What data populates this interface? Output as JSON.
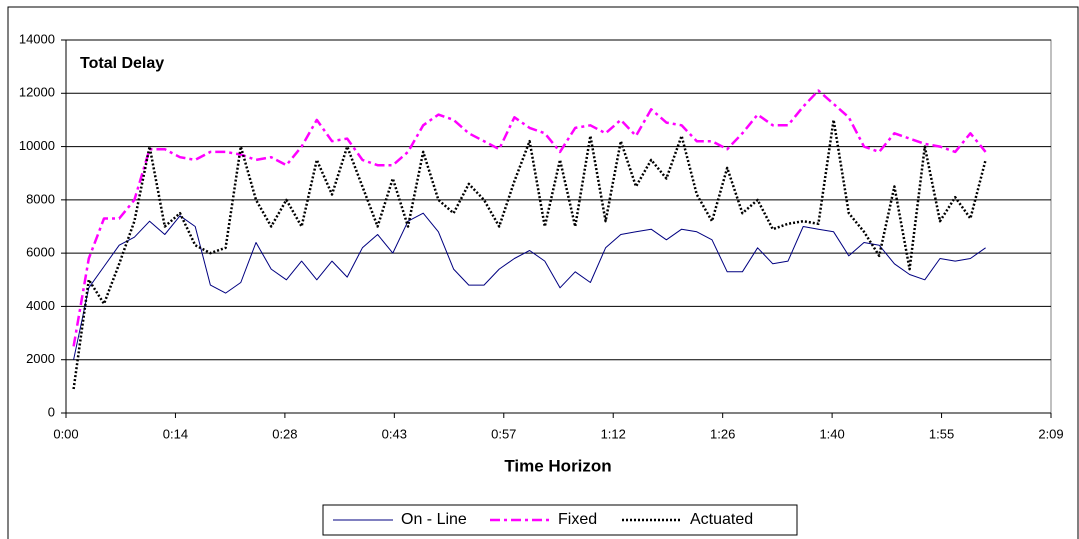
{
  "chart_data": {
    "type": "line",
    "title": "Total Delay",
    "x_label": "Time Horizon",
    "x": [
      1,
      3,
      5,
      7,
      9,
      11,
      13,
      15,
      17,
      19,
      21,
      23,
      25,
      27,
      29,
      31,
      33,
      35,
      37,
      39,
      41,
      43,
      45,
      47,
      49,
      51,
      53,
      55,
      57,
      59,
      61,
      63,
      65,
      67,
      69,
      71,
      73,
      75,
      77,
      79,
      81,
      83,
      85,
      87,
      89,
      91,
      93,
      95,
      97,
      99,
      101,
      103,
      105,
      107,
      109,
      111,
      113,
      115,
      117,
      119,
      121
    ],
    "series": [
      {
        "name": "On - Line",
        "color": "#000080",
        "line_style": "solid",
        "values": [
          2000,
          4700,
          5500,
          6300,
          6600,
          7200,
          6700,
          7400,
          7000,
          4800,
          4500,
          4900,
          6400,
          5400,
          5000,
          5700,
          5000,
          5700,
          5100,
          6200,
          6700,
          6000,
          7200,
          7500,
          6800,
          5400,
          4800,
          4800,
          5400,
          5800,
          6100,
          5700,
          4700,
          5300,
          4900,
          6200,
          6700,
          6800,
          6900,
          6500,
          6900,
          6800,
          6500,
          5300,
          5300,
          6200,
          5600,
          5700,
          7000,
          6900,
          6800,
          5900,
          6400,
          6300,
          5600,
          5200,
          5000,
          5800,
          5700,
          5800,
          6200
        ]
      },
      {
        "name": "Fixed",
        "color": "#ff00ff",
        "line_style": "dash-dot",
        "values": [
          2500,
          5800,
          7300,
          7300,
          8000,
          9900,
          9900,
          9600,
          9500,
          9800,
          9800,
          9700,
          9500,
          9600,
          9300,
          10000,
          11000,
          10200,
          10300,
          9500,
          9300,
          9300,
          9800,
          10800,
          11200,
          11000,
          10500,
          10200,
          9900,
          11100,
          10700,
          10500,
          9800,
          10700,
          10800,
          10500,
          11000,
          10400,
          11400,
          10900,
          10800,
          10200,
          10200,
          9900,
          10500,
          11200,
          10800,
          10800,
          11500,
          12100,
          11600,
          11100,
          10000,
          9800,
          10500,
          10300,
          10100,
          10000,
          9800,
          10500,
          9800
        ]
      },
      {
        "name": "Actuated",
        "color": "#000000",
        "line_style": "dot",
        "values": [
          900,
          5000,
          4100,
          5600,
          7200,
          10000,
          7000,
          7500,
          6300,
          6000,
          6200,
          10000,
          8000,
          7000,
          8000,
          7000,
          9500,
          8200,
          10000,
          8500,
          7000,
          8800,
          7000,
          9800,
          8000,
          7500,
          8600,
          8000,
          7000,
          8700,
          10200,
          7000,
          9500,
          7000,
          10400,
          7200,
          10200,
          8500,
          9500,
          8800,
          10400,
          8200,
          7200,
          9200,
          7500,
          8000,
          6900,
          7100,
          7200,
          7100,
          11000,
          7500,
          6800,
          5900,
          8500,
          5400,
          10000,
          7200,
          8100,
          7300,
          9500
        ]
      }
    ],
    "xlim": [
      0,
      129.6
    ],
    "xticks": [
      {
        "value": 0,
        "label": "0:00"
      },
      {
        "value": 14.4,
        "label": "0:14"
      },
      {
        "value": 28.8,
        "label": "0:28"
      },
      {
        "value": 43.2,
        "label": "0:43"
      },
      {
        "value": 57.6,
        "label": "0:57"
      },
      {
        "value": 72,
        "label": "1:12"
      },
      {
        "value": 86.4,
        "label": "1:26"
      },
      {
        "value": 100.8,
        "label": "1:40"
      },
      {
        "value": 115.2,
        "label": "1:55"
      },
      {
        "value": 129.6,
        "label": "2:09"
      }
    ],
    "ylim": [
      0,
      14000
    ],
    "yticks": [
      0,
      2000,
      4000,
      6000,
      8000,
      10000,
      12000,
      14000
    ],
    "grid": true,
    "legend": "bottom"
  }
}
